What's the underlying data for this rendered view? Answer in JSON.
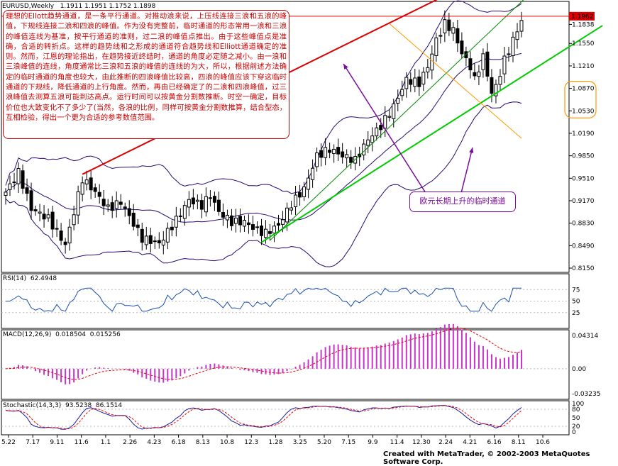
{
  "chart_data": [
    {
      "type": "candlestick",
      "title": "EURUSD,Weekly",
      "ohlc_readout": {
        "open": "1.1911",
        "high": "1.1951",
        "low": "1.1752",
        "close": "1.1898"
      },
      "y_ticks": [
        "1.1962",
        "1.1838",
        "1.1550",
        "1.1210",
        "1.0870",
        "1.0530",
        "1.0190",
        "0.9850",
        "0.9510",
        "0.9170",
        "0.8830",
        "0.8490",
        "0.8150"
      ],
      "current_price": "1.1962",
      "ylim": [
        0.815,
        1.21
      ],
      "indicators": [
        "Bollinger Bands"
      ],
      "highlighted_levels": [
        "1.0870",
        "1.0530"
      ],
      "lines": [
        {
          "name": "",
          "color": "#dd0000",
          "points": [
            [
              18,
              0.957
            ],
            [
              96,
              1.205
            ]
          ]
        },
        {
          "name": "",
          "color": "#00cc00",
          "points": [
            [
              60,
              0.854
            ],
            [
              120,
              1.1
            ]
          ]
        },
        {
          "name": "",
          "color": "#008800",
          "points": [
            [
              62,
              0.857
            ],
            [
              112,
              1.163
            ]
          ]
        },
        {
          "name": "",
          "color": "#ff9900",
          "points": [
            [
              90,
              1.185
            ],
            [
              115,
              1.045
            ]
          ]
        }
      ],
      "annotation_text": "理想的Ellott趋势通道，是一条平行通道。对推动浪来说，上压线连接三浪和五浪的峰值，下规线连接二浪和四浪的峰值。作为没有完整前，临时通道的形态常用一浪和三浪的峰值连线为基准，按平行通道的准则，过二浪的峰值点推出。由于这些峰值点是准确，合适的转折点。这样的趋势线和之形成的通道符合趋势线和Elliott通道确定的准则。然而，江恩的理论指出，在趋势接近终结时，通道的角度必定随之减小。由一浪和三浪峰值的连线，角度通常比三浪和五浪的峰值的连线的为大，所以，根据前述方法确定的临时通道的角度也较大，由此推断的四浪峰值比较高，四浪的峰值应该下穿这临时通道的下规线，降低通道的上行角度。然而，再由已经确定了的二浪和四浪峰值，过三浪峰值去测算五浪可能到达高点。运行时间可以按黄金分割数推断。时空一确定，目标价位也大致变化不了多少了(当然，各浪的比例，同样可按黄金分割数推算，结合型态，互相检验，得出一个更为合适的参考数值范围。",
      "callout_text": "欧元长期上升的临时通道"
    },
    {
      "type": "line",
      "title": "RSI(14)",
      "current_value": "62.4948",
      "y_ticks": [
        "100",
        "75",
        "50",
        "25",
        "0"
      ],
      "ylim": [
        0,
        100
      ]
    },
    {
      "type": "bar",
      "title": "MACD(12,26,9)",
      "values_readout": [
        "0.018504",
        "0.015256"
      ],
      "y_ticks": [
        "0.04314",
        "0.00",
        "-0.03235"
      ],
      "ylim": [
        -0.03235,
        0.04314
      ]
    },
    {
      "type": "line",
      "title": "Stochastic(14,3,3)",
      "values_readout": [
        "93.5238",
        "86.1514"
      ],
      "y_ticks": [
        "100",
        "80",
        "50",
        "20",
        "0"
      ],
      "ylim": [
        0,
        100
      ]
    }
  ],
  "x_axis": {
    "tick_labels": [
      "5.22",
      "7.17",
      "9.11",
      "11.6",
      "1.1",
      "2.26",
      "4.23",
      "6.18",
      "8.13",
      "10.8",
      "12.3",
      "1.28",
      "3.25",
      "5.20",
      "7.15",
      "9.9",
      "11.4",
      "12.30",
      "2.24",
      "4.21",
      "6.16",
      "8.11",
      "10.6"
    ]
  },
  "credit": "Created with MetaTrader, © 2002-2003 MetaQuotes Software Corp.",
  "colors": {
    "candle": "#000000",
    "bands": "#2a0a6e",
    "rsi": "#1a4fb0",
    "macd_hist": "#cc33cc",
    "macd_signal": "#ee0000",
    "stoch_main": "#1a1a9e",
    "stoch_signal": "#ee0000",
    "red_channel": "#dd0000",
    "green_channel": "#00cc00",
    "callout": "#7a0a9e"
  }
}
